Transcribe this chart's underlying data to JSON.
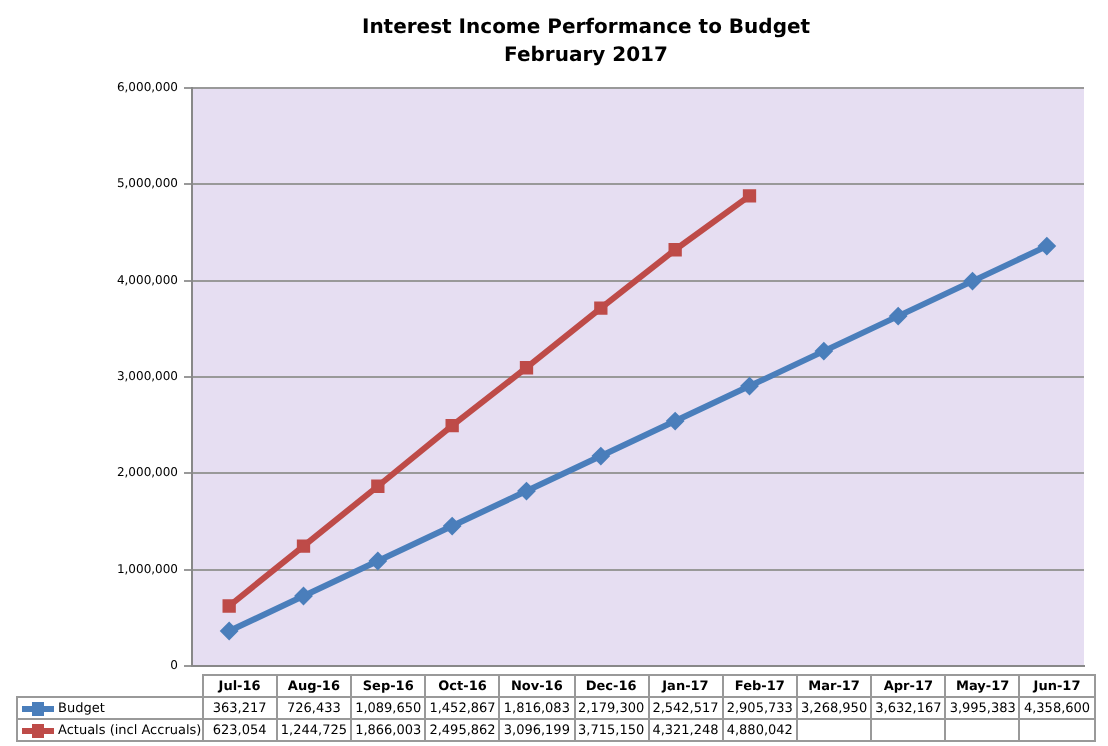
{
  "chart_data": {
    "type": "line",
    "title": "Interest Income Performance to Budget",
    "subtitle": "February 2017",
    "categories": [
      "Jul-16",
      "Aug-16",
      "Sep-16",
      "Oct-16",
      "Nov-16",
      "Dec-16",
      "Jan-17",
      "Feb-17",
      "Mar-17",
      "Apr-17",
      "May-17",
      "Jun-17"
    ],
    "series": [
      {
        "name": "Budget",
        "color": "#4a7ebb",
        "marker": "diamond",
        "values": [
          363217,
          726433,
          1089650,
          1452867,
          1816083,
          2179300,
          2542517,
          2905733,
          3268950,
          3632167,
          3995383,
          4358600
        ],
        "value_labels": [
          "363,217",
          "726,433",
          "1,089,650",
          "1,452,867",
          "1,816,083",
          "2,179,300",
          "2,542,517",
          "2,905,733",
          "3,268,950",
          "3,632,167",
          "3,995,383",
          "4,358,600"
        ]
      },
      {
        "name": "Actuals (incl Accruals)",
        "color": "#be4b48",
        "marker": "square",
        "values": [
          623054,
          1244725,
          1866003,
          2495862,
          3096199,
          3715150,
          4321248,
          4880042,
          null,
          null,
          null,
          null
        ],
        "value_labels": [
          "623,054",
          "1,244,725",
          "1,866,003",
          "2,495,862",
          "3,096,199",
          "3,715,150",
          "4,321,248",
          "4,880,042",
          null,
          null,
          null,
          null
        ]
      }
    ],
    "ylim": [
      0,
      6000000
    ],
    "yticks": [
      {
        "value": 0,
        "label": "0"
      },
      {
        "value": 1000000,
        "label": "1,000,000"
      },
      {
        "value": 2000000,
        "label": "2,000,000"
      },
      {
        "value": 3000000,
        "label": "3,000,000"
      },
      {
        "value": 4000000,
        "label": "4,000,000"
      },
      {
        "value": 5000000,
        "label": "5,000,000"
      },
      {
        "value": 6000000,
        "label": "6,000,000"
      }
    ],
    "grid": "y",
    "legend": "bottom"
  }
}
